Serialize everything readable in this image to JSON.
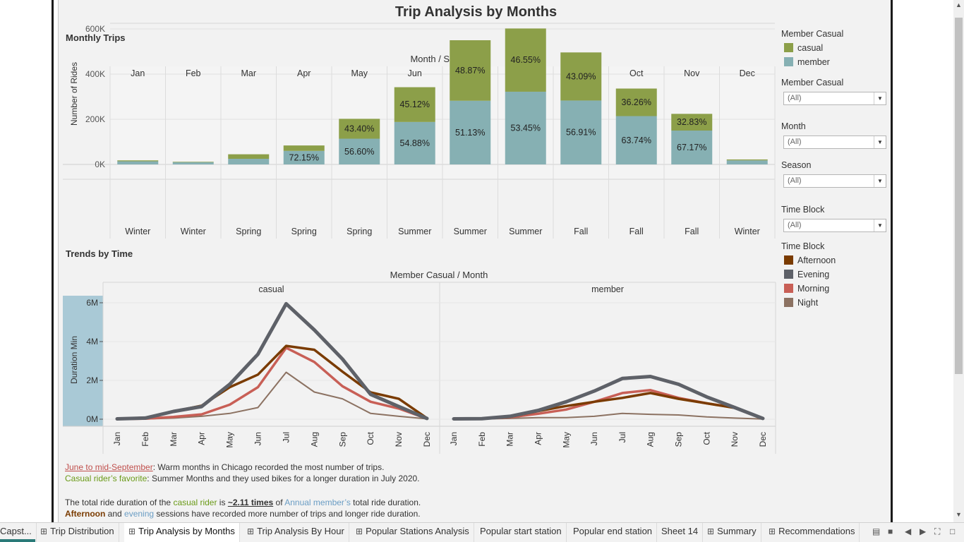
{
  "dashboard": {
    "title": "Trip Analysis by Months"
  },
  "monthly": {
    "section_title": "Monthly Trips",
    "header": "Month / Season",
    "y_axis_label": "Number of Rides"
  },
  "trends": {
    "section_title": "Trends by Time",
    "header": "Member Casual / Month",
    "y_axis_label": "Duration Min",
    "panels": [
      "casual",
      "member"
    ]
  },
  "chart_data": [
    {
      "type": "bar",
      "title": "Monthly Trips",
      "stacked": true,
      "categories": [
        "Jan",
        "Feb",
        "Mar",
        "Apr",
        "May",
        "Jun",
        "Jul",
        "Aug",
        "Sep",
        "Oct",
        "Nov",
        "Dec"
      ],
      "seasons": [
        "Winter",
        "Winter",
        "Spring",
        "Spring",
        "Spring",
        "Summer",
        "Summer",
        "Summer",
        "Fall",
        "Fall",
        "Fall",
        "Winter"
      ],
      "ylabel": "Number of Rides",
      "ylim": [
        0,
        600000
      ],
      "y_ticks": [
        "0K",
        "200K",
        "400K",
        "600K"
      ],
      "series": [
        {
          "name": "member",
          "color": "#86b0b3",
          "values": [
            14000,
            10000,
            25000,
            60000,
            114000,
            188000,
            282000,
            322000,
            283000,
            214000,
            150000,
            18000
          ],
          "labels": [
            "",
            "",
            "",
            "72.15%",
            "56.60%",
            "54.88%",
            "51.13%",
            "53.45%",
            "56.91%",
            "63.74%",
            "67.17%",
            ""
          ]
        },
        {
          "name": "casual",
          "color": "#8c9f49",
          "values": [
            4000,
            2000,
            20000,
            24000,
            88000,
            154000,
            268000,
            280000,
            213000,
            122000,
            74000,
            4000
          ],
          "labels": [
            "",
            "",
            "",
            "",
            "43.40%",
            "45.12%",
            "48.87%",
            "46.55%",
            "43.09%",
            "36.26%",
            "32.83%",
            ""
          ]
        }
      ]
    },
    {
      "type": "line",
      "title": "Trends by Time",
      "panels": [
        "casual",
        "member"
      ],
      "x": [
        "Jan",
        "Feb",
        "Mar",
        "Apr",
        "May",
        "Jun",
        "Jul",
        "Aug",
        "Sep",
        "Oct",
        "Nov",
        "Dec"
      ],
      "ylabel": "Duration Min",
      "ylim": [
        0,
        6000000
      ],
      "y_ticks": [
        "0M",
        "2M",
        "4M",
        "6M"
      ],
      "series": [
        {
          "name": "Afternoon",
          "color": "#7a3b00",
          "casual": [
            20000,
            80000,
            400000,
            700000,
            1650000,
            2300000,
            3780000,
            3580000,
            2450000,
            1380000,
            1050000,
            50000
          ],
          "member": [
            20000,
            30000,
            120000,
            420000,
            680000,
            900000,
            1100000,
            1350000,
            1050000,
            820000,
            580000,
            40000
          ]
        },
        {
          "name": "Evening",
          "color": "#5e6168",
          "casual": [
            20000,
            60000,
            400000,
            650000,
            1800000,
            3350000,
            5950000,
            4600000,
            3100000,
            1280000,
            650000,
            40000
          ],
          "member": [
            20000,
            30000,
            150000,
            450000,
            900000,
            1450000,
            2100000,
            2200000,
            1800000,
            1150000,
            600000,
            40000
          ]
        },
        {
          "name": "Morning",
          "color": "#c85f56",
          "casual": [
            10000,
            30000,
            120000,
            250000,
            750000,
            1650000,
            3680000,
            2950000,
            1700000,
            900000,
            550000,
            30000
          ],
          "member": [
            20000,
            30000,
            100000,
            280000,
            500000,
            900000,
            1350000,
            1500000,
            1100000,
            820000,
            600000,
            40000
          ]
        },
        {
          "name": "Night",
          "color": "#8c7262",
          "casual": [
            5000,
            10000,
            60000,
            150000,
            300000,
            600000,
            2420000,
            1400000,
            1050000,
            300000,
            150000,
            20000
          ],
          "member": [
            5000,
            10000,
            40000,
            80000,
            80000,
            150000,
            300000,
            250000,
            220000,
            120000,
            60000,
            10000
          ]
        }
      ]
    }
  ],
  "legend_member": {
    "title": "Member Casual",
    "items": [
      "casual",
      "member"
    ],
    "colors": [
      "#8c9f49",
      "#86b0b3"
    ]
  },
  "filters": [
    {
      "label": "Member Casual",
      "value": "(All)"
    },
    {
      "label": "Month",
      "value": "(All)"
    },
    {
      "label": "Season",
      "value": "(All)"
    },
    {
      "label": "Time Block",
      "value": "(All)"
    }
  ],
  "legend_time": {
    "title": "Time Block",
    "items": [
      "Afternoon",
      "Evening",
      "Morning",
      "Night"
    ],
    "colors": [
      "#7a3b00",
      "#5e6168",
      "#c85f56",
      "#8c7262"
    ]
  },
  "annotations": {
    "l1_a": "June to mid-September",
    "l1_b": ": Warm months in Chicago recorded the most number of trips.",
    "l2_a": "Casual rider’s favorite",
    "l2_b": ": Summer Months and they used bikes for a longer duration in July 2020.",
    "l3_a": "The total ride duration of the ",
    "l3_b": "casual rider",
    "l3_c": " is ",
    "l3_d": "~2.11 times",
    "l3_e": " of ",
    "l3_f": "Annual member’s",
    "l3_g": " total ride duration.",
    "l4_a": "Afternoon",
    "l4_b": " and ",
    "l4_c": "evening",
    "l4_d": " sessions have recorded more number of trips and longer ride duration."
  },
  "tabs": [
    {
      "label": "Capst...",
      "grid": false
    },
    {
      "label": "Trip Distribution",
      "grid": true
    },
    {
      "label": "Trip Analysis by Months",
      "grid": true,
      "active": true
    },
    {
      "label": "Trip Analysis By Hour",
      "grid": true
    },
    {
      "label": "Popular Stations Analysis",
      "grid": true
    },
    {
      "label": "Popular start station",
      "grid": false
    },
    {
      "label": "Popular end station",
      "grid": false
    },
    {
      "label": "Sheet 14",
      "grid": false
    },
    {
      "label": "Summary",
      "grid": true
    },
    {
      "label": "Recommendations",
      "grid": true
    }
  ]
}
